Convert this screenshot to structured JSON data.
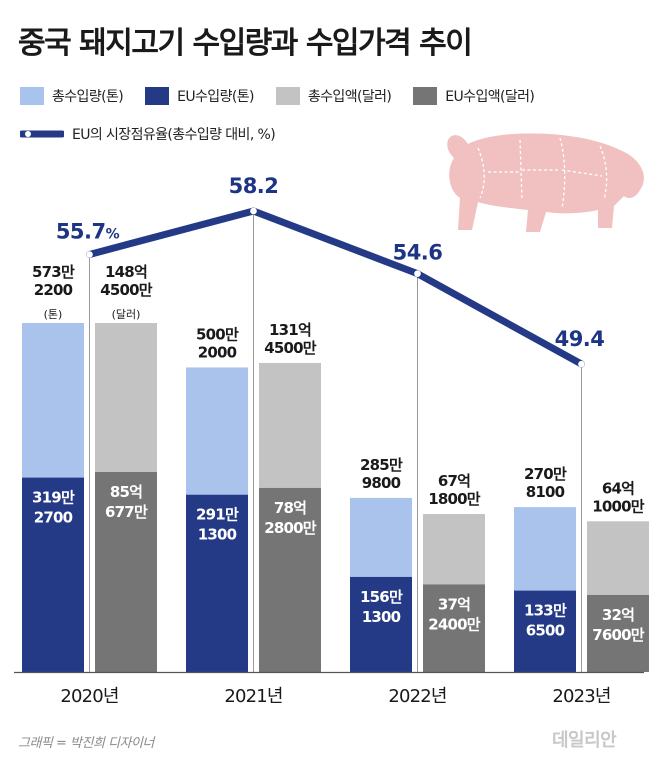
{
  "title": "중국 돼지고기 수입량과 수입가격 추이",
  "legend": {
    "total_volume": "총수입량(톤)",
    "eu_volume": "EU수입량(톤)",
    "total_value": "총수입액(달러)",
    "eu_value": "EU수입액(달러)",
    "eu_share": "EU의 시장점유율(총수입량 대비, %)"
  },
  "unit_labels": {
    "volume": "(톤)",
    "value": "(달러)"
  },
  "pig_icon": "pig-cuts-illustration",
  "credit": "그래픽 = 박진희 디자이너",
  "watermark": "데일리안",
  "colors": {
    "total_volume": "#a9c3ec",
    "eu_volume": "#253a86",
    "total_value": "#c3c3c3",
    "eu_value": "#757575",
    "share_line": "#253a86",
    "share_label": "#1e3585",
    "pig": "#f1c0c0"
  },
  "chart_data": {
    "type": "bar",
    "categories": [
      "2020년",
      "2021년",
      "2022년",
      "2023년"
    ],
    "series": [
      {
        "name": "총수입량(톤)",
        "values": [
          5732200,
          5002000,
          2859800,
          2708100
        ],
        "labels": [
          [
            "573만",
            "2200"
          ],
          [
            "500만",
            "2000"
          ],
          [
            "285만",
            "9800"
          ],
          [
            "270만",
            "8100"
          ]
        ]
      },
      {
        "name": "EU수입량(톤)",
        "values": [
          3192700,
          2911300,
          1561300,
          1336500
        ],
        "labels": [
          [
            "319만",
            "2700"
          ],
          [
            "291만",
            "1300"
          ],
          [
            "156만",
            "1300"
          ],
          [
            "133만",
            "6500"
          ]
        ]
      },
      {
        "name": "총수입액(달러)",
        "values": [
          14845000000,
          13145000000,
          6718000000,
          6410000000
        ],
        "labels": [
          [
            "148억",
            "4500만"
          ],
          [
            "131억",
            "4500만"
          ],
          [
            "67억",
            "1800만"
          ],
          [
            "64억",
            "1000만"
          ]
        ]
      },
      {
        "name": "EU수입액(달러)",
        "values": [
          8506770000,
          7828000000,
          3724000000,
          3276000000
        ],
        "labels": [
          [
            "85억",
            "677만"
          ],
          [
            "78억",
            "2800만"
          ],
          [
            "37억",
            "2400만"
          ],
          [
            "32억",
            "7600만"
          ]
        ]
      }
    ],
    "line": {
      "name": "EU의 시장점유율(총수입량 대비, %)",
      "values": [
        55.7,
        58.2,
        54.6,
        49.4
      ],
      "labels": [
        "55.7",
        "58.2",
        "54.6",
        "49.4"
      ],
      "first_suffix": "%"
    },
    "title": "중국 돼지고기 수입량과 수입가격 추이",
    "xlabel": "",
    "ylabel": "",
    "grid": false,
    "legend": "top-left"
  }
}
